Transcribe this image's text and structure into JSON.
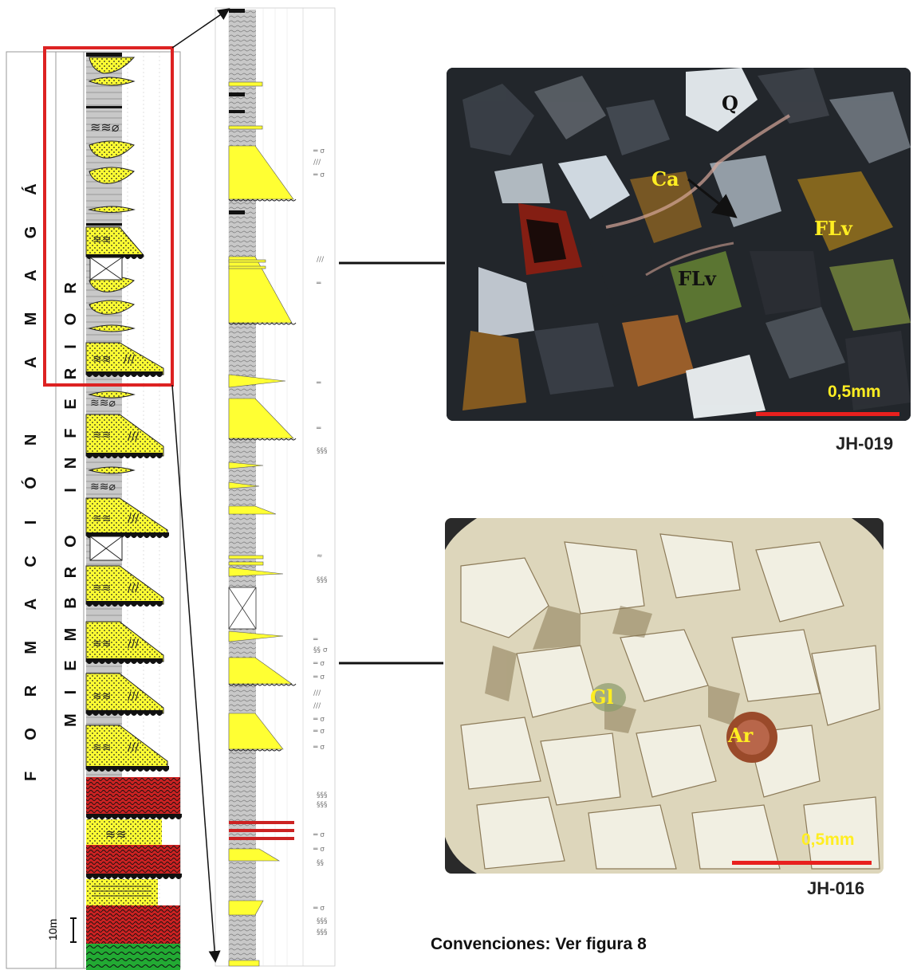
{
  "column_labels": {
    "formation": "FORMACIÓN AMAGÁ",
    "member": "MIEMBRO INFERIOR"
  },
  "scale_bar": "10m",
  "photos": [
    {
      "code": "JH-019",
      "scale": "0,5mm",
      "minerals": [
        "Q",
        "Ca",
        "FLv",
        "FLv"
      ]
    },
    {
      "code": "JH-016",
      "scale": "0,5mm",
      "minerals": [
        "Gl",
        "Ar"
      ]
    }
  ],
  "caption": "Convenciones: Ver figura 8",
  "colors": {
    "sandstone": "#ffff33",
    "mudstone": "#c8c8c8",
    "red_bed": "#cc2222",
    "green_bed": "#22aa33",
    "highlight_box": "#dd2222",
    "scale_bar": "#e8201e",
    "label_yellow": "#ffee22"
  }
}
